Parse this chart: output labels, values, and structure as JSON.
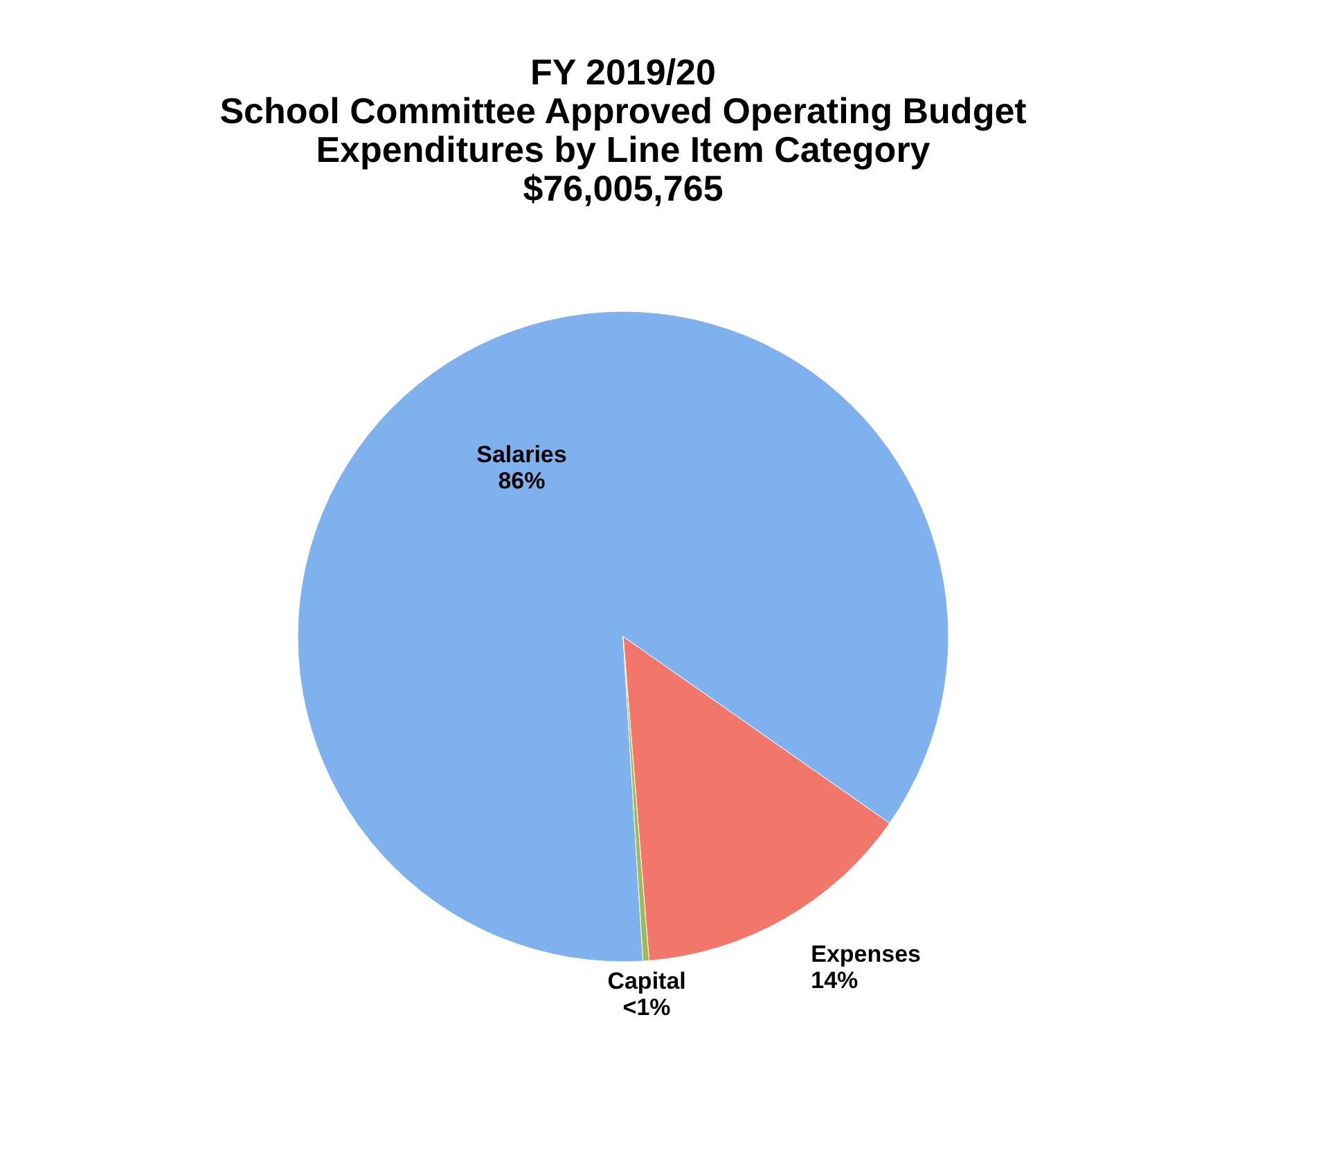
{
  "chart_data": {
    "type": "pie",
    "title": [
      "FY 2019/20",
      "School Committee Approved Operating Budget",
      "Expenditures by Line Item Category",
      "$76,005,765"
    ],
    "categories": [
      "Salaries",
      "Expenses",
      "Capital"
    ],
    "values": [
      85.7,
      14.0,
      0.3
    ],
    "value_labels": [
      "86%",
      "14%",
      "<1%"
    ],
    "colors": [
      "#7fb1ee",
      "#f2766a",
      "#9bbb59"
    ],
    "legend": false
  }
}
